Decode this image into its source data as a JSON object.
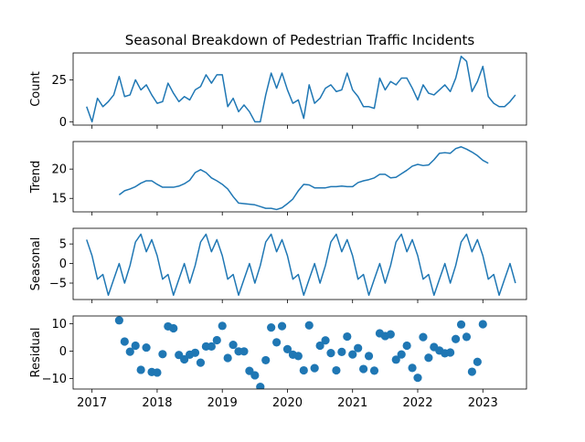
{
  "chart_data": {
    "type": "line",
    "title": "Seasonal Breakdown of Pedestrian Traffic Incidents",
    "x_tick_labels": [
      "2017",
      "2018",
      "2019",
      "2020",
      "2021",
      "2022",
      "2023"
    ],
    "x_ticks": [
      2017,
      2018,
      2019,
      2020,
      2021,
      2022,
      2023
    ],
    "x_range": [
      2016.71,
      2023.67
    ],
    "x_start": 2016.917,
    "x_step": 0.08333,
    "panels": [
      {
        "name": "Count",
        "ylabel": "Count",
        "style": "line",
        "color": "#1f77b4",
        "ylim": [
          -2,
          41
        ],
        "yticks": [
          0,
          25
        ],
        "ytick_labels": [
          "0",
          "25"
        ],
        "start_index": 0,
        "values": [
          9,
          0,
          14,
          9,
          12,
          16,
          27,
          15,
          16,
          25,
          19,
          22,
          16,
          11,
          12,
          23,
          17,
          12,
          15,
          13,
          19,
          21,
          28,
          23,
          28,
          28,
          9,
          14,
          6,
          10,
          6,
          0,
          0,
          16,
          29,
          20,
          29,
          19,
          11,
          13,
          2,
          22,
          11,
          14,
          20,
          22,
          18,
          19,
          29,
          19,
          15,
          9,
          9,
          8,
          26,
          19,
          24,
          22,
          26,
          26,
          20,
          13,
          22,
          17,
          16,
          19,
          22,
          18,
          26,
          39,
          36,
          18,
          24,
          33,
          15,
          11,
          9,
          9,
          12,
          16
        ]
      },
      {
        "name": "Trend",
        "ylabel": "Trend",
        "style": "line",
        "color": "#1f77b4",
        "ylim": [
          12.7,
          24.7
        ],
        "yticks": [
          15,
          20
        ],
        "ytick_labels": [
          "15",
          "20"
        ],
        "start_index": 6,
        "values": [
          15.6,
          16.3,
          16.6,
          17.0,
          17.6,
          18.0,
          18.0,
          17.4,
          16.9,
          16.9,
          16.9,
          17.1,
          17.5,
          18.1,
          19.4,
          19.9,
          19.4,
          18.5,
          18.0,
          17.4,
          16.6,
          15.3,
          14.2,
          14.1,
          14.0,
          13.9,
          13.6,
          13.3,
          13.3,
          13.1,
          13.4,
          14.1,
          14.9,
          16.3,
          17.4,
          17.3,
          16.8,
          16.8,
          16.8,
          17.0,
          17.0,
          17.1,
          17.0,
          17.0,
          17.7,
          18.0,
          18.2,
          18.5,
          19.1,
          19.1,
          18.5,
          18.6,
          19.2,
          19.8,
          20.5,
          20.8,
          20.6,
          20.7,
          21.6,
          22.7,
          22.8,
          22.7,
          23.5,
          23.8,
          23.4,
          22.9,
          22.3,
          21.5,
          21.0
        ]
      },
      {
        "name": "Seasonal",
        "ylabel": "Seasonal",
        "style": "line",
        "color": "#1f77b4",
        "ylim": [
          -9.2,
          9.0
        ],
        "yticks": [
          -5,
          0,
          5
        ],
        "ytick_labels": [
          "−5",
          "0",
          "5"
        ],
        "start_index": 0,
        "values": [
          6.1,
          2.0,
          -4.0,
          -2.8,
          -8.1,
          -4.0,
          0.0,
          -5.0,
          -0.5,
          5.5,
          7.5,
          3.0,
          6.1,
          2.0,
          -4.0,
          -2.8,
          -8.1,
          -4.0,
          0.0,
          -5.0,
          -0.5,
          5.5,
          7.5,
          3.0,
          6.1,
          2.0,
          -4.0,
          -2.8,
          -8.1,
          -4.0,
          0.0,
          -5.0,
          -0.5,
          5.5,
          7.5,
          3.0,
          6.1,
          2.0,
          -4.0,
          -2.8,
          -8.1,
          -4.0,
          0.0,
          -5.0,
          -0.5,
          5.5,
          7.5,
          3.0,
          6.1,
          2.0,
          -4.0,
          -2.8,
          -8.1,
          -4.0,
          0.0,
          -5.0,
          -0.5,
          5.5,
          7.5,
          3.0,
          6.1,
          2.0,
          -4.0,
          -2.8,
          -8.1,
          -4.0,
          0.0,
          -5.0,
          -0.5,
          5.5,
          7.5,
          3.0,
          6.1,
          2.0,
          -4.0,
          -2.8,
          -8.1,
          -4.0,
          0.0,
          -5.0
        ]
      },
      {
        "name": "Residual",
        "ylabel": "Residual",
        "style": "scatter",
        "color": "#1f77b4",
        "ylim": [
          -13.8,
          12.8
        ],
        "yticks": [
          -10,
          0,
          10
        ],
        "ytick_labels": [
          "−10",
          "0",
          "10"
        ],
        "start_index": 6,
        "values": [
          11.2,
          3.5,
          -0.2,
          2.0,
          -6.8,
          1.3,
          -7.6,
          -7.8,
          -1.1,
          9.0,
          8.3,
          -1.4,
          -3.0,
          -1.3,
          -0.6,
          -4.2,
          1.7,
          1.7,
          4.0,
          9.2,
          -2.5,
          2.3,
          -0.1,
          -0.1,
          -7.2,
          -8.8,
          -13.0,
          -3.3,
          8.6,
          3.2,
          9.1,
          0.7,
          -1.3,
          -1.8,
          -7.0,
          9.4,
          -6.2,
          2.0,
          3.9,
          -0.7,
          -7.0,
          -0.3,
          5.3,
          -1.2,
          1.1,
          -6.5,
          -1.8,
          -7.1,
          6.5,
          5.5,
          6.1,
          -3.1,
          -1.2,
          2.0,
          -6.1,
          -9.7,
          5.1,
          -2.4,
          1.5,
          0.2,
          -0.8,
          -0.5,
          4.4,
          9.7,
          5.2,
          -7.5,
          -3.9,
          9.8
        ]
      }
    ]
  }
}
